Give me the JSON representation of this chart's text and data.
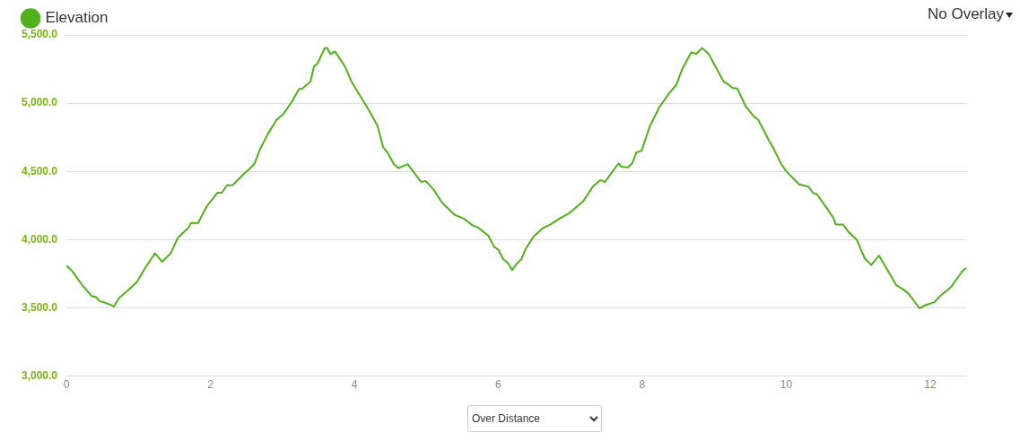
{
  "chart_data": {
    "type": "line",
    "legend": "top left",
    "grid": "y",
    "marker": "none",
    "line_style": "solid",
    "xlim": [
      0,
      12.5
    ],
    "xticks": [
      0,
      2,
      4,
      6,
      8,
      10,
      12
    ],
    "ylim": [
      3000,
      5500
    ],
    "yticks": [
      {
        "value": 3000,
        "label": "3,000.0"
      },
      {
        "value": 3500,
        "label": "3,500.0"
      },
      {
        "value": 4000,
        "label": "4,000.0"
      },
      {
        "value": 4500,
        "label": "4,500.0"
      },
      {
        "value": 5000,
        "label": "5,000.0"
      },
      {
        "value": 5500,
        "label": "5,500.0"
      }
    ],
    "annotations": [
      "No Overlay",
      "Over Distance"
    ],
    "series": [
      {
        "name": "Elevation",
        "color": "#52b01b",
        "x": [
          0,
          0.08,
          0.22,
          0.35,
          0.41,
          0.46,
          0.54,
          0.66,
          0.73,
          0.84,
          0.98,
          1.09,
          1.23,
          1.33,
          1.45,
          1.55,
          1.7,
          1.73,
          1.83,
          1.95,
          2.1,
          2.16,
          2.23,
          2.31,
          2.46,
          2.61,
          2.69,
          2.8,
          2.92,
          3.01,
          3.13,
          3.23,
          3.28,
          3.39,
          3.44,
          3.49,
          3.59,
          3.62,
          3.67,
          3.73,
          3.87,
          3.96,
          4.06,
          4.19,
          4.32,
          4.4,
          4.46,
          4.55,
          4.61,
          4.74,
          4.93,
          4.99,
          5.1,
          5.22,
          5.39,
          5.52,
          5.65,
          5.71,
          5.86,
          5.94,
          6,
          6.07,
          6.14,
          6.19,
          6.26,
          6.32,
          6.38,
          6.49,
          6.62,
          6.72,
          6.85,
          6.99,
          7.18,
          7.31,
          7.42,
          7.48,
          7.67,
          7.71,
          7.8,
          7.86,
          7.92,
          7.99,
          8.11,
          8.24,
          8.37,
          8.47,
          8.56,
          8.68,
          8.75,
          8.83,
          8.92,
          9.13,
          9.19,
          9.25,
          9.32,
          9.44,
          9.55,
          9.61,
          9.76,
          9.84,
          9.93,
          10.01,
          10.18,
          10.31,
          10.37,
          10.43,
          10.56,
          10.65,
          10.69,
          10.79,
          10.86,
          10.98,
          11.09,
          11.18,
          11.29,
          11.36,
          11.53,
          11.64,
          11.7,
          11.85,
          11.95,
          12.06,
          12.12,
          12.29,
          12.44,
          12.5
        ],
        "values": [
          3810,
          3770,
          3666,
          3587,
          3579,
          3550,
          3538,
          3510,
          3572,
          3621,
          3690,
          3789,
          3900,
          3838,
          3900,
          4016,
          4090,
          4122,
          4122,
          4245,
          4344,
          4344,
          4398,
          4400,
          4479,
          4553,
          4664,
          4775,
          4879,
          4918,
          5009,
          5103,
          5108,
          5158,
          5268,
          5293,
          5404,
          5404,
          5359,
          5379,
          5268,
          5158,
          5071,
          4960,
          4837,
          4677,
          4640,
          4553,
          4524,
          4553,
          4422,
          4430,
          4368,
          4270,
          4183,
          4154,
          4102,
          4092,
          4030,
          3949,
          3925,
          3856,
          3826,
          3777,
          3826,
          3856,
          3932,
          4023,
          4085,
          4110,
          4154,
          4196,
          4282,
          4386,
          4437,
          4422,
          4559,
          4534,
          4529,
          4559,
          4640,
          4652,
          4837,
          4973,
          5071,
          5132,
          5256,
          5372,
          5362,
          5404,
          5362,
          5158,
          5140,
          5113,
          5108,
          4973,
          4903,
          4879,
          4726,
          4652,
          4553,
          4496,
          4405,
          4388,
          4344,
          4331,
          4233,
          4164,
          4110,
          4110,
          4060,
          3999,
          3863,
          3814,
          3883,
          3819,
          3666,
          3629,
          3604,
          3498,
          3523,
          3542,
          3579,
          3653,
          3764,
          3794
        ]
      }
    ]
  }
}
